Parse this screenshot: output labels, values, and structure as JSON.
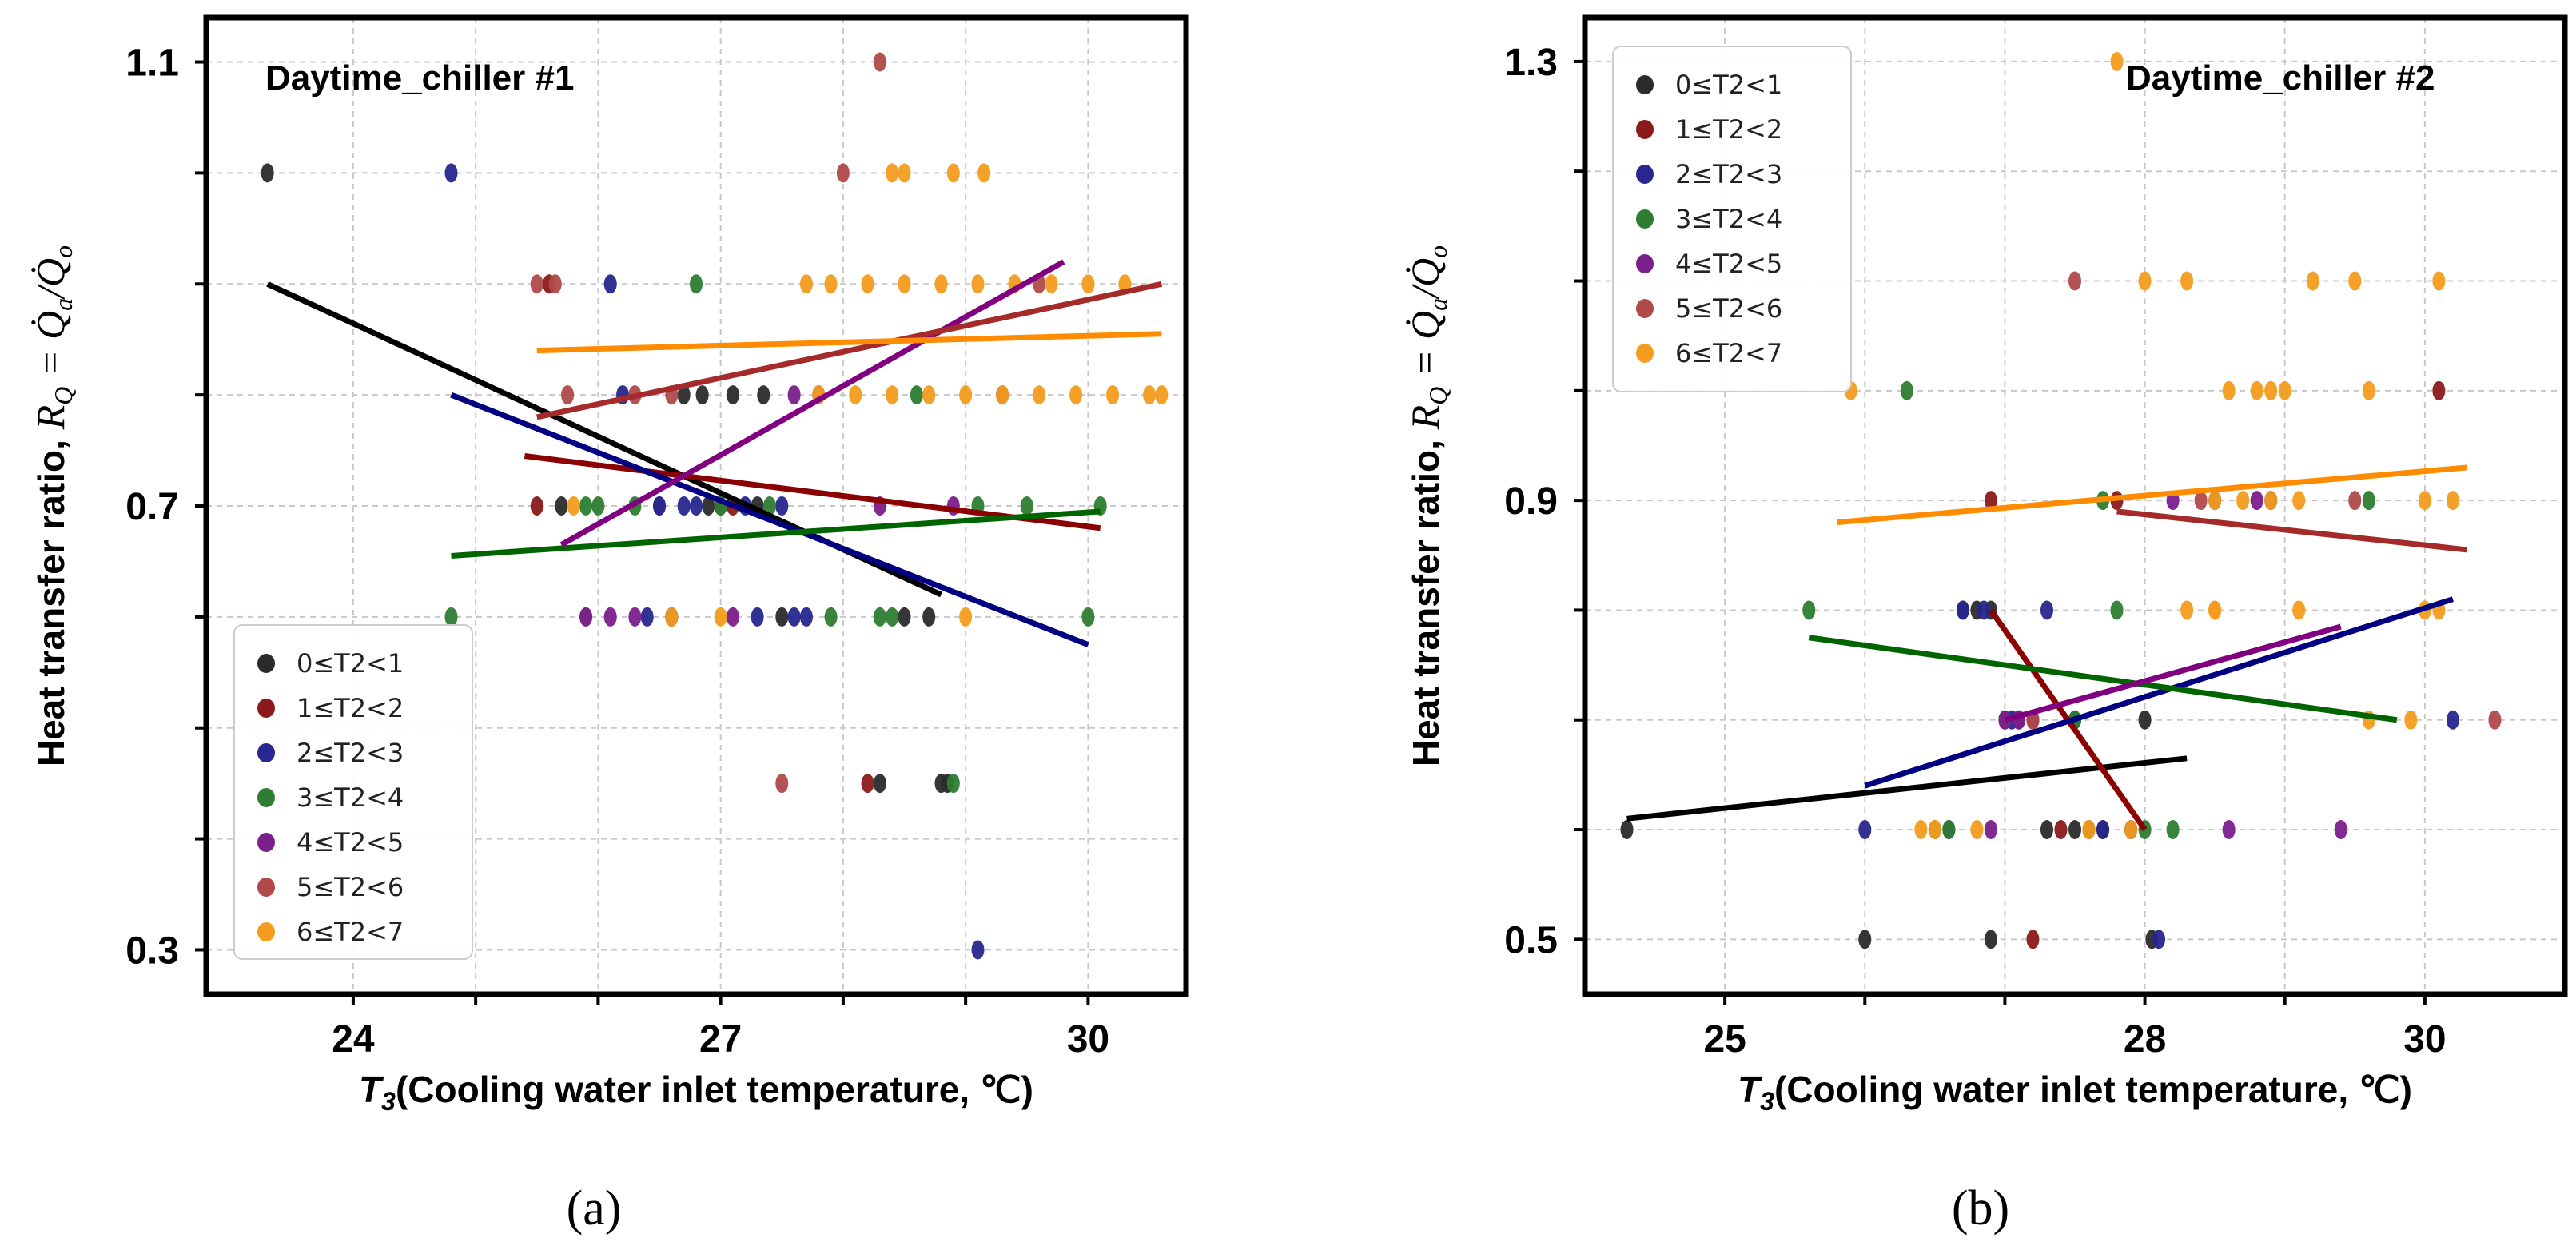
{
  "chart_data": [
    {
      "type": "scatter",
      "title": "Daytime_chiller #1",
      "caption": "(a)",
      "xlabel": "T3(Cooling water inlet temperature, ℃)",
      "xlabel_italic_prefix": "T",
      "xlabel_subscript": "3",
      "xlabel_rest": "(Cooling water inlet temperature, ℃)",
      "ylabel": "Heat transfer ratio, R_Q = Q̇_a/Q̇_o",
      "ylabel_text": "Heat transfer ratio, ",
      "ylabel_math": "R",
      "ylabel_math_sub": "Q",
      "ylabel_math_rest": " = Q̇",
      "ylabel_math_sub2": "a",
      "ylabel_math_rest2": "/Q̇",
      "ylabel_math_sub3": "o",
      "xlim": [
        22.8,
        30.8
      ],
      "ylim": [
        0.26,
        1.14
      ],
      "xticks": [
        24,
        27,
        30
      ],
      "xtick_labels": [
        "24",
        "27",
        "30"
      ],
      "yticks": [
        0.3,
        0.7,
        1.1
      ],
      "ytick_labels": [
        "0.3",
        "0.7",
        "1.1"
      ],
      "xgrid": [
        24,
        25,
        26,
        27,
        28,
        29,
        30
      ],
      "ygrid": [
        0.3,
        0.4,
        0.5,
        0.6,
        0.7,
        0.8,
        0.9,
        1.0,
        1.1
      ],
      "legend_loc": "lower-left",
      "series": [
        {
          "name": "0≤T2<1",
          "color": "#2b2b2b",
          "line_color": "#000000",
          "points": [
            [
              23.3,
              1.0
            ],
            [
              25.7,
              0.7
            ],
            [
              26.7,
              0.8
            ],
            [
              26.85,
              0.8
            ],
            [
              27.1,
              0.8
            ],
            [
              27.35,
              0.8
            ],
            [
              26.9,
              0.7
            ],
            [
              27.3,
              0.7
            ],
            [
              26.6,
              0.6
            ],
            [
              27.5,
              0.6
            ],
            [
              28.5,
              0.6
            ],
            [
              28.7,
              0.6
            ],
            [
              28.8,
              0.45
            ],
            [
              28.85,
              0.45
            ],
            [
              28.3,
              0.45
            ]
          ],
          "line": [
            [
              23.3,
              0.9
            ],
            [
              28.8,
              0.62
            ]
          ]
        },
        {
          "name": "1≤T2<2",
          "color": "#8b1a1a",
          "line_color": "#8b0000",
          "points": [
            [
              25.5,
              0.7
            ],
            [
              26.5,
              0.7
            ],
            [
              27.1,
              0.7
            ],
            [
              28.2,
              0.45
            ],
            [
              27.0,
              0.7
            ],
            [
              25.6,
              0.9
            ]
          ],
          "line": [
            [
              25.4,
              0.745
            ],
            [
              30.1,
              0.68
            ]
          ]
        },
        {
          "name": "2≤T2<3",
          "color": "#27278f",
          "line_color": "#000080",
          "points": [
            [
              24.8,
              1.0
            ],
            [
              26.1,
              0.9
            ],
            [
              26.2,
              0.8
            ],
            [
              26.5,
              0.7
            ],
            [
              26.8,
              0.7
            ],
            [
              27.2,
              0.7
            ],
            [
              27.5,
              0.7
            ],
            [
              26.4,
              0.6
            ],
            [
              26.6,
              0.6
            ],
            [
              27.3,
              0.6
            ],
            [
              27.6,
              0.6
            ],
            [
              27.7,
              0.6
            ],
            [
              29.1,
              0.3
            ],
            [
              26.7,
              0.7
            ]
          ],
          "line": [
            [
              24.8,
              0.8
            ],
            [
              30.0,
              0.575
            ]
          ]
        },
        {
          "name": "3≤T2<4",
          "color": "#2e7d32",
          "line_color": "#006400",
          "points": [
            [
              24.8,
              0.6
            ],
            [
              26.0,
              0.7
            ],
            [
              25.9,
              0.7
            ],
            [
              26.3,
              0.7
            ],
            [
              26.8,
              0.9
            ],
            [
              27.0,
              0.7
            ],
            [
              27.4,
              0.7
            ],
            [
              27.9,
              0.6
            ],
            [
              28.3,
              0.6
            ],
            [
              28.9,
              0.45
            ],
            [
              28.4,
              0.6
            ],
            [
              28.6,
              0.8
            ],
            [
              29.1,
              0.7
            ],
            [
              29.5,
              0.7
            ],
            [
              30.1,
              0.7
            ],
            [
              30.0,
              0.6
            ],
            [
              25.9,
              0.6
            ]
          ],
          "line": [
            [
              24.8,
              0.655
            ],
            [
              30.1,
              0.695
            ]
          ]
        },
        {
          "name": "4≤T2<5",
          "color": "#7b1f8c",
          "line_color": "#800080",
          "points": [
            [
              25.9,
              0.6
            ],
            [
              26.3,
              0.6
            ],
            [
              27.1,
              0.6
            ],
            [
              27.6,
              0.8
            ],
            [
              27.8,
              0.8
            ],
            [
              28.3,
              0.7
            ],
            [
              28.9,
              0.7
            ],
            [
              29.3,
              0.8
            ],
            [
              26.1,
              0.6
            ]
          ],
          "line": [
            [
              25.7,
              0.665
            ],
            [
              29.8,
              0.92
            ]
          ]
        },
        {
          "name": "5≤T2<6",
          "color": "#b04a4a",
          "line_color": "#a52a2a",
          "points": [
            [
              28.3,
              1.1
            ],
            [
              28.0,
              1.0
            ],
            [
              25.5,
              0.9
            ],
            [
              25.65,
              0.9
            ],
            [
              25.75,
              0.8
            ],
            [
              26.3,
              0.8
            ],
            [
              27.5,
              0.45
            ],
            [
              26.6,
              0.8
            ],
            [
              29.6,
              0.9
            ]
          ],
          "line": [
            [
              25.5,
              0.78
            ],
            [
              30.6,
              0.9
            ]
          ]
        },
        {
          "name": "6≤T2<7",
          "color": "#f39c1e",
          "line_color": "#ff8c00",
          "points": [
            [
              28.4,
              1.0
            ],
            [
              28.5,
              1.0
            ],
            [
              28.9,
              1.0
            ],
            [
              29.15,
              1.0
            ],
            [
              27.7,
              0.9
            ],
            [
              27.9,
              0.9
            ],
            [
              28.2,
              0.9
            ],
            [
              28.5,
              0.9
            ],
            [
              28.8,
              0.9
            ],
            [
              29.1,
              0.9
            ],
            [
              29.4,
              0.9
            ],
            [
              29.7,
              0.9
            ],
            [
              30.0,
              0.9
            ],
            [
              30.3,
              0.9
            ],
            [
              27.8,
              0.8
            ],
            [
              28.1,
              0.8
            ],
            [
              28.4,
              0.8
            ],
            [
              28.7,
              0.8
            ],
            [
              29.0,
              0.8
            ],
            [
              29.3,
              0.8
            ],
            [
              29.6,
              0.8
            ],
            [
              29.9,
              0.8
            ],
            [
              30.2,
              0.8
            ],
            [
              30.5,
              0.8
            ],
            [
              30.6,
              0.8
            ],
            [
              26.6,
              0.6
            ],
            [
              27.0,
              0.6
            ],
            [
              29.0,
              0.6
            ],
            [
              25.8,
              0.7
            ]
          ],
          "line": [
            [
              25.5,
              0.84
            ],
            [
              30.6,
              0.855
            ]
          ]
        }
      ]
    },
    {
      "type": "scatter",
      "title": "Daytime_chiller #2",
      "caption": "(b)",
      "xlabel": "T3(Cooling water inlet temperature, ℃)",
      "xlabel_italic_prefix": "T",
      "xlabel_subscript": "3",
      "xlabel_rest": "(Cooling water inlet temperature, ℃)",
      "ylabel": "Heat transfer ratio, R_Q = Q̇_a/Q̇_o",
      "ylabel_text": "Heat transfer ratio, ",
      "ylabel_math": "R",
      "ylabel_math_sub": "Q",
      "ylabel_math_rest": " = Q̇",
      "ylabel_math_sub2": "a",
      "ylabel_math_rest2": "/Q̇",
      "ylabel_math_sub3": "o",
      "xlim": [
        24.0,
        31.0
      ],
      "ylim": [
        0.45,
        1.34
      ],
      "xticks": [
        25,
        28,
        30
      ],
      "xtick_labels": [
        "25",
        "28",
        "30"
      ],
      "yticks": [
        0.5,
        0.9,
        1.3
      ],
      "ytick_labels": [
        "0.5",
        "0.9",
        "1.3"
      ],
      "xgrid": [
        25,
        26,
        27,
        28,
        29,
        30
      ],
      "ygrid": [
        0.5,
        0.6,
        0.7,
        0.8,
        0.9,
        1.0,
        1.1,
        1.2,
        1.3
      ],
      "legend_loc": "upper-left",
      "series": [
        {
          "name": "0≤T2<1",
          "color": "#2b2b2b",
          "line_color": "#000000",
          "points": [
            [
              24.3,
              0.6
            ],
            [
              26.0,
              0.5
            ],
            [
              26.9,
              0.5
            ],
            [
              27.3,
              0.6
            ],
            [
              27.5,
              0.6
            ],
            [
              27.6,
              0.6
            ],
            [
              27.7,
              0.6
            ],
            [
              27.9,
              0.6
            ],
            [
              28.05,
              0.5
            ],
            [
              28.0,
              0.7
            ],
            [
              26.9,
              0.8
            ],
            [
              26.8,
              0.8
            ],
            [
              26.7,
              0.8
            ],
            [
              27.2,
              0.7
            ]
          ],
          "line": [
            [
              24.3,
              0.61
            ],
            [
              28.3,
              0.665
            ]
          ]
        },
        {
          "name": "1≤T2<2",
          "color": "#8b1a1a",
          "line_color": "#8b0000",
          "points": [
            [
              26.9,
              0.9
            ],
            [
              27.2,
              0.5
            ],
            [
              27.0,
              0.7
            ],
            [
              27.1,
              0.7
            ],
            [
              27.4,
              0.6
            ],
            [
              27.8,
              0.9
            ],
            [
              30.1,
              1.0
            ]
          ],
          "line": [
            [
              26.9,
              0.8
            ],
            [
              28.0,
              0.6
            ]
          ]
        },
        {
          "name": "2≤T2<3",
          "color": "#27278f",
          "line_color": "#000080",
          "points": [
            [
              26.0,
              0.6
            ],
            [
              26.6,
              0.6
            ],
            [
              26.7,
              0.8
            ],
            [
              26.85,
              0.8
            ],
            [
              27.3,
              0.8
            ],
            [
              27.5,
              0.7
            ],
            [
              27.7,
              0.6
            ],
            [
              27.9,
              0.6
            ],
            [
              28.1,
              0.5
            ],
            [
              28.5,
              0.9
            ],
            [
              30.2,
              0.7
            ],
            [
              27.05,
              0.7
            ],
            [
              28.9,
              0.9
            ]
          ],
          "line": [
            [
              26.0,
              0.64
            ],
            [
              30.2,
              0.81
            ]
          ]
        },
        {
          "name": "3≤T2<4",
          "color": "#2e7d32",
          "line_color": "#006400",
          "points": [
            [
              25.6,
              0.8
            ],
            [
              26.3,
              1.0
            ],
            [
              26.5,
              0.6
            ],
            [
              26.6,
              0.6
            ],
            [
              27.2,
              0.7
            ],
            [
              27.5,
              0.7
            ],
            [
              27.8,
              0.8
            ],
            [
              27.7,
              0.9
            ],
            [
              28.0,
              0.6
            ],
            [
              28.2,
              0.6
            ],
            [
              29.6,
              0.9
            ],
            [
              27.0,
              0.7
            ]
          ],
          "line": [
            [
              25.6,
              0.775
            ],
            [
              29.8,
              0.7
            ]
          ]
        },
        {
          "name": "4≤T2<5",
          "color": "#7b1f8c",
          "line_color": "#800080",
          "points": [
            [
              26.9,
              0.6
            ],
            [
              27.0,
              0.7
            ],
            [
              27.2,
              0.7
            ],
            [
              28.8,
              0.9
            ],
            [
              28.6,
              0.6
            ],
            [
              29.4,
              0.6
            ],
            [
              28.2,
              0.9
            ],
            [
              27.1,
              0.7
            ]
          ],
          "line": [
            [
              27.0,
              0.7
            ],
            [
              29.4,
              0.785
            ]
          ]
        },
        {
          "name": "5≤T2<6",
          "color": "#b04a4a",
          "line_color": "#a52a2a",
          "points": [
            [
              27.5,
              1.1
            ],
            [
              29.5,
              0.9
            ],
            [
              30.5,
              0.7
            ],
            [
              27.2,
              0.7
            ],
            [
              28.4,
              0.9
            ]
          ],
          "line": [
            [
              27.8,
              0.89
            ],
            [
              30.3,
              0.855
            ]
          ]
        },
        {
          "name": "6≤T2<7",
          "color": "#f39c1e",
          "line_color": "#ff8c00",
          "points": [
            [
              25.9,
              1.0
            ],
            [
              27.8,
              1.3
            ],
            [
              28.0,
              1.1
            ],
            [
              28.3,
              1.1
            ],
            [
              29.2,
              1.1
            ],
            [
              29.5,
              1.1
            ],
            [
              30.1,
              1.1
            ],
            [
              28.6,
              1.0
            ],
            [
              28.8,
              1.0
            ],
            [
              28.9,
              1.0
            ],
            [
              29.0,
              1.0
            ],
            [
              29.6,
              1.0
            ],
            [
              28.5,
              0.9
            ],
            [
              28.7,
              0.9
            ],
            [
              28.9,
              0.9
            ],
            [
              29.1,
              0.9
            ],
            [
              30.0,
              0.9
            ],
            [
              30.2,
              0.9
            ],
            [
              28.3,
              0.8
            ],
            [
              28.5,
              0.8
            ],
            [
              29.1,
              0.8
            ],
            [
              30.0,
              0.8
            ],
            [
              30.1,
              0.8
            ],
            [
              29.6,
              0.7
            ],
            [
              29.9,
              0.7
            ],
            [
              26.4,
              0.6
            ],
            [
              26.5,
              0.6
            ],
            [
              26.8,
              0.6
            ],
            [
              27.6,
              0.6
            ],
            [
              27.9,
              0.6
            ],
            [
              28.5,
              0.8
            ]
          ],
          "line": [
            [
              25.8,
              0.88
            ],
            [
              30.3,
              0.93
            ]
          ]
        }
      ]
    }
  ]
}
